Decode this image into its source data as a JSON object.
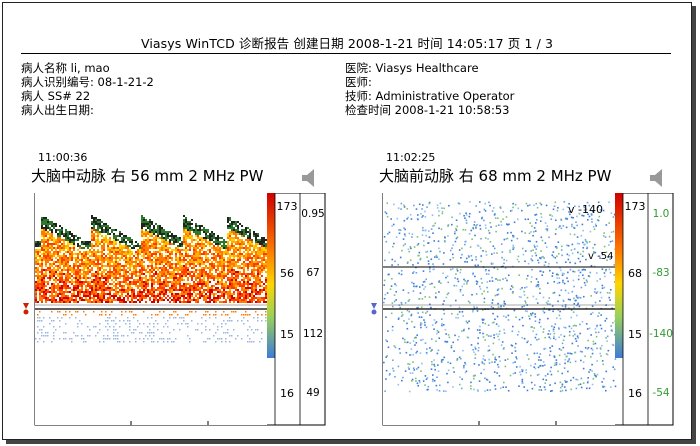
{
  "report": {
    "header": "Viasys WinTCD 诊断报告  创建日期 2008-1-21 时间 14:05:17  页 1 / 3"
  },
  "patient": {
    "name": "病人名称 li, mao",
    "id": "病人识别编号: 08-1-21-2",
    "ss": "病人 SS# 22",
    "dob": "病人出生日期:"
  },
  "facility": {
    "hospital": "医院: Viasys Healthcare",
    "doctor": "医师:",
    "technician": "技师: Administrative Operator",
    "exam_time": "检查时间 2008-1-21 10:58:53"
  },
  "left_panel": {
    "time": "11:00:36",
    "title": "大脑中动脉 右 56 mm 2 MHz PW",
    "scale_top": "173",
    "scale_mid": "56",
    "scale_low": "15",
    "scale_bottom": "16",
    "right_vals": [
      "0.95",
      "67",
      "112",
      "49"
    ],
    "colors": {
      "accent": "#cc2200"
    }
  },
  "right_panel": {
    "time": "11:02:25",
    "title": "大脑前动脉 右 68 mm 2 MHz PW",
    "scale_top": "173",
    "scale_mid": "68",
    "scale_low": "15",
    "scale_bottom": "16",
    "right_vals": [
      "1.0",
      "-83",
      "-140",
      "-54"
    ],
    "marker_top": "v -140",
    "marker_mid": "v -54",
    "colors": {
      "green": "#339933"
    }
  }
}
